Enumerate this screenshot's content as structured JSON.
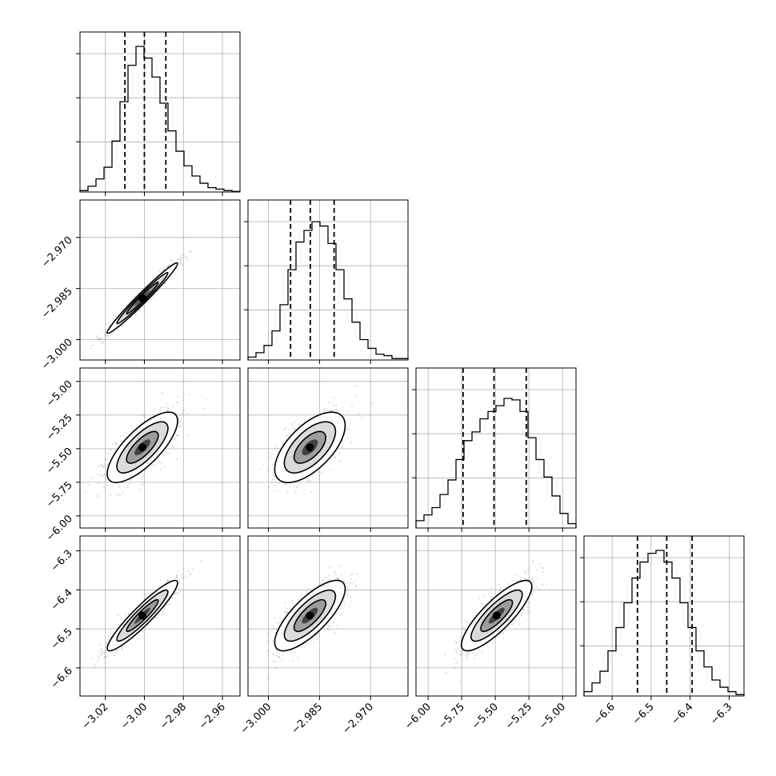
{
  "chart_data": {
    "type": "corner",
    "n_params": 4,
    "params": [
      {
        "ticks": [
          -3.02,
          -3.0,
          -2.98,
          -2.96
        ],
        "tick_labels": [
          "−3.02",
          "−3.00",
          "−2.98",
          "−2.96"
        ],
        "range": [
          -3.033,
          -2.951
        ],
        "quantiles": [
          -3.01,
          -3.0,
          -2.989
        ],
        "mode": -3.001
      },
      {
        "ticks": [
          -3.0,
          -2.985,
          -2.97
        ],
        "tick_labels": [
          "−3.000",
          "−2.985",
          "−2.970"
        ],
        "range": [
          -3.006,
          -2.959
        ],
        "quantiles": [
          -2.9935,
          -2.9877,
          -2.9807
        ],
        "mode": -2.9878
      },
      {
        "ticks": [
          -6.0,
          -5.75,
          -5.5,
          -5.25,
          -5.0
        ],
        "tick_labels": [
          "−6.00",
          "−5.75",
          "−5.50",
          "−5.25",
          "−5.00"
        ],
        "range": [
          -6.09,
          -4.9
        ],
        "quantiles": [
          -5.74,
          -5.51,
          -5.27
        ],
        "mode": -5.49
      },
      {
        "ticks": [
          -6.6,
          -6.5,
          -6.4,
          -6.3
        ],
        "tick_labels": [
          "−6.6",
          "−6.5",
          "−6.4",
          "−6.3"
        ],
        "range": [
          -6.672,
          -6.262
        ],
        "quantiles": [
          -6.535,
          -6.46,
          -6.395
        ],
        "mode": -6.466
      }
    ],
    "histograms": [
      [
        0.01,
        0.04,
        0.09,
        0.17,
        0.35,
        0.62,
        0.87,
        1.0,
        0.92,
        0.79,
        0.61,
        0.42,
        0.28,
        0.18,
        0.11,
        0.06,
        0.03,
        0.02,
        0.01,
        0.004
      ],
      [
        0.02,
        0.05,
        0.1,
        0.2,
        0.38,
        0.62,
        0.81,
        0.89,
        0.95,
        0.92,
        0.8,
        0.62,
        0.42,
        0.26,
        0.14,
        0.08,
        0.04,
        0.03,
        0.01,
        0.01
      ],
      [
        0.05,
        0.09,
        0.14,
        0.23,
        0.33,
        0.47,
        0.6,
        0.66,
        0.75,
        0.8,
        0.84,
        0.89,
        0.88,
        0.8,
        0.62,
        0.47,
        0.35,
        0.22,
        0.1,
        0.03
      ],
      [
        0.03,
        0.09,
        0.17,
        0.31,
        0.47,
        0.64,
        0.81,
        0.92,
        0.98,
        1.0,
        0.92,
        0.81,
        0.64,
        0.47,
        0.31,
        0.2,
        0.11,
        0.06,
        0.03,
        0.01
      ]
    ],
    "correlations": {
      "1-0": 0.98,
      "2-0": 0.75,
      "2-1": 0.62,
      "3-0": 0.93,
      "3-1": 0.76,
      "3-2": 0.83
    },
    "grid": true,
    "quantile_lines": "dashed"
  }
}
